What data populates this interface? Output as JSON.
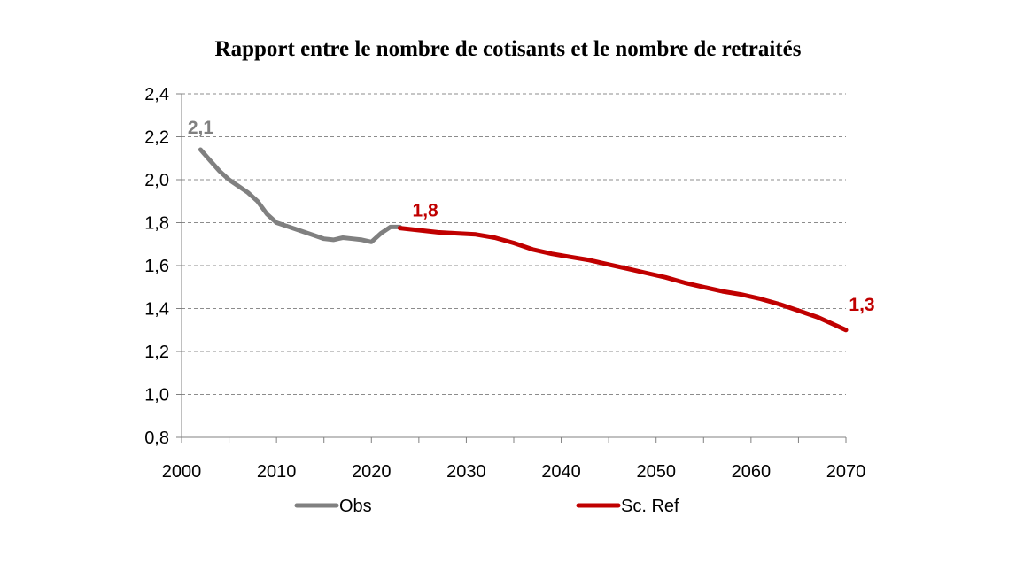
{
  "chart_data": {
    "type": "line",
    "title": "Rapport entre le nombre de cotisants et le nombre de retraités",
    "xlabel": "",
    "ylabel": "",
    "xlim": [
      2000,
      2070
    ],
    "ylim": [
      0.8,
      2.4
    ],
    "x_ticks": [
      "2000",
      "2010",
      "2020",
      "2030",
      "2040",
      "2050",
      "2060",
      "2070"
    ],
    "y_ticks": [
      "0,8",
      "1,0",
      "1,2",
      "1,4",
      "1,6",
      "1,8",
      "2,0",
      "2,2",
      "2,4"
    ],
    "grid": true,
    "legend_position": "bottom",
    "series": [
      {
        "name": "Obs",
        "color": "#808080",
        "x": [
          2002,
          2003,
          2004,
          2005,
          2006,
          2007,
          2008,
          2009,
          2010,
          2011,
          2012,
          2013,
          2014,
          2015,
          2016,
          2017,
          2018,
          2019,
          2020,
          2021,
          2022,
          2023
        ],
        "y": [
          2.14,
          2.09,
          2.04,
          2.0,
          1.97,
          1.94,
          1.9,
          1.84,
          1.8,
          1.785,
          1.77,
          1.755,
          1.74,
          1.725,
          1.72,
          1.73,
          1.725,
          1.72,
          1.71,
          1.75,
          1.78,
          1.78
        ]
      },
      {
        "name": "Sc. Ref",
        "color": "#C00000",
        "x": [
          2023,
          2025,
          2027,
          2029,
          2031,
          2033,
          2035,
          2037,
          2039,
          2041,
          2043,
          2045,
          2047,
          2049,
          2051,
          2053,
          2055,
          2057,
          2059,
          2061,
          2063,
          2065,
          2067,
          2069,
          2070
        ],
        "y": [
          1.775,
          1.765,
          1.755,
          1.75,
          1.745,
          1.73,
          1.705,
          1.675,
          1.655,
          1.64,
          1.625,
          1.605,
          1.585,
          1.565,
          1.545,
          1.52,
          1.5,
          1.48,
          1.465,
          1.445,
          1.42,
          1.39,
          1.36,
          1.32,
          1.3
        ]
      }
    ],
    "annotations": [
      {
        "text": "2,1",
        "x": 2002,
        "y": 2.14,
        "color": "#808080"
      },
      {
        "text": "1,8",
        "x": 2024,
        "y": 1.78,
        "color": "#C00000"
      },
      {
        "text": "1,3",
        "x": 2070,
        "y": 1.3,
        "color": "#C00000"
      }
    ]
  }
}
